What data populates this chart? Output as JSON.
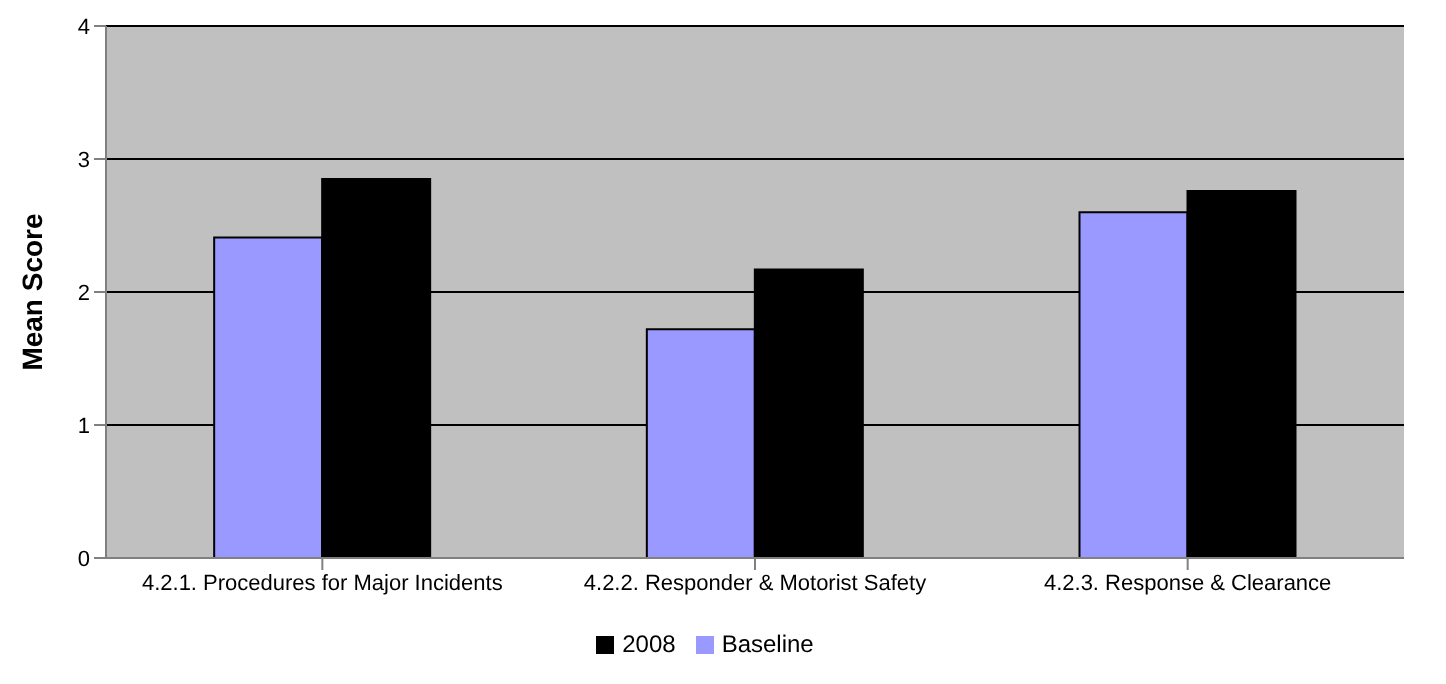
{
  "chart_data": {
    "type": "bar",
    "ylabel": "Mean Score",
    "categories": [
      "4.2.1. Procedures for Major Incidents",
      "4.2.2. Responder & Motorist Safety",
      "4.2.3. Response & Clearance"
    ],
    "series": [
      {
        "name": "Baseline",
        "color": "#9999ff",
        "values": [
          2.41,
          1.72,
          2.6
        ]
      },
      {
        "name": "2008",
        "color": "#000000",
        "values": [
          2.85,
          2.17,
          2.76
        ]
      }
    ],
    "ylim": [
      0,
      4
    ],
    "yticks": [
      0,
      1,
      2,
      3,
      4
    ],
    "grid": "y",
    "legend": "bottom"
  }
}
